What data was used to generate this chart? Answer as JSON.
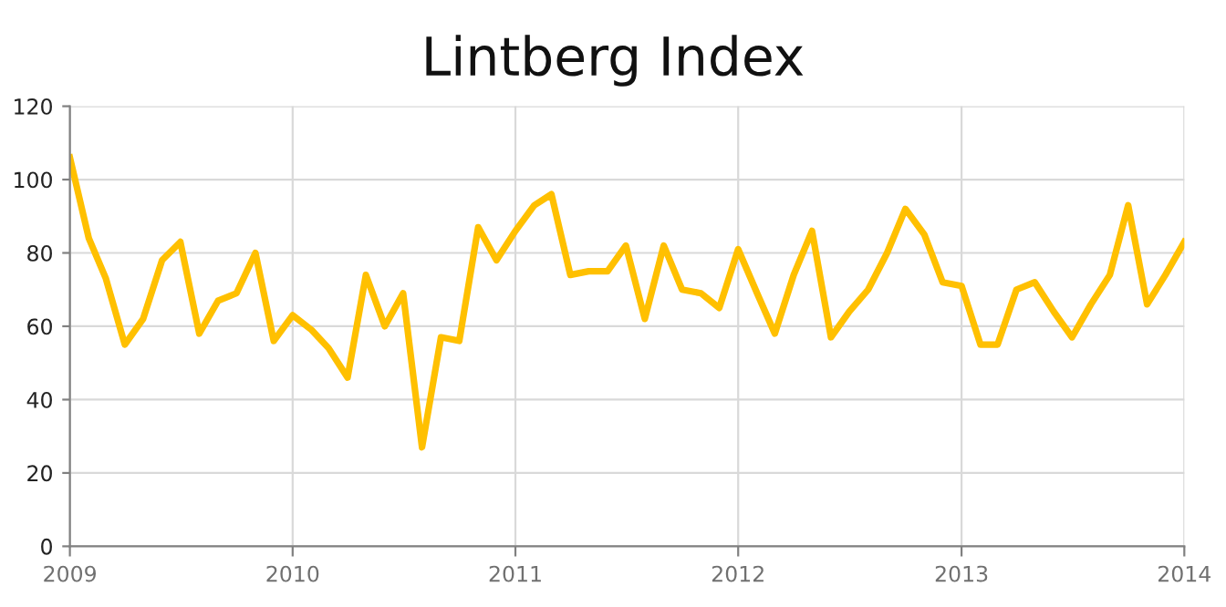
{
  "chart_data": {
    "type": "line",
    "title": "Lintberg Index",
    "x": [
      "2009-01",
      "2009-02",
      "2009-03",
      "2009-04",
      "2009-05",
      "2009-06",
      "2009-07",
      "2009-08",
      "2009-09",
      "2009-10",
      "2009-11",
      "2009-12",
      "2010-01",
      "2010-02",
      "2010-03",
      "2010-04",
      "2010-05",
      "2010-06",
      "2010-07",
      "2010-08",
      "2010-09",
      "2010-10",
      "2010-11",
      "2010-12",
      "2011-01",
      "2011-02",
      "2011-03",
      "2011-04",
      "2011-05",
      "2011-06",
      "2011-07",
      "2011-08",
      "2011-09",
      "2011-10",
      "2011-11",
      "2011-12",
      "2012-01",
      "2012-02",
      "2012-03",
      "2012-04",
      "2012-05",
      "2012-06",
      "2012-07",
      "2012-08",
      "2012-09",
      "2012-10",
      "2012-11",
      "2012-12",
      "2013-01",
      "2013-02",
      "2013-03",
      "2013-04",
      "2013-05",
      "2013-06",
      "2013-07",
      "2013-08",
      "2013-09",
      "2013-10",
      "2013-11",
      "2013-12",
      "2014-01"
    ],
    "series": [
      {
        "color": "#ffc000",
        "values": [
          106,
          84,
          73,
          55,
          62,
          78,
          83,
          58,
          67,
          69,
          80,
          56,
          63,
          59,
          54,
          46,
          74,
          60,
          69,
          27,
          57,
          56,
          87,
          78,
          86,
          93,
          96,
          74,
          75,
          75,
          82,
          62,
          82,
          70,
          69,
          65,
          81,
          69,
          58,
          74,
          86,
          57,
          64,
          70,
          80,
          92,
          85,
          72,
          71,
          55,
          55,
          70,
          72,
          64,
          57,
          66,
          74,
          93,
          66,
          74,
          83
        ]
      }
    ],
    "xlim": [
      "2009",
      "2014"
    ],
    "xticks": [
      "2009",
      "2010",
      "2011",
      "2012",
      "2013",
      "2014"
    ],
    "ylim": [
      0,
      120
    ],
    "yticks": [
      0,
      20,
      40,
      60,
      80,
      100,
      120
    ],
    "grid": true,
    "marker": "none",
    "line_style": "solid",
    "legend": false
  }
}
